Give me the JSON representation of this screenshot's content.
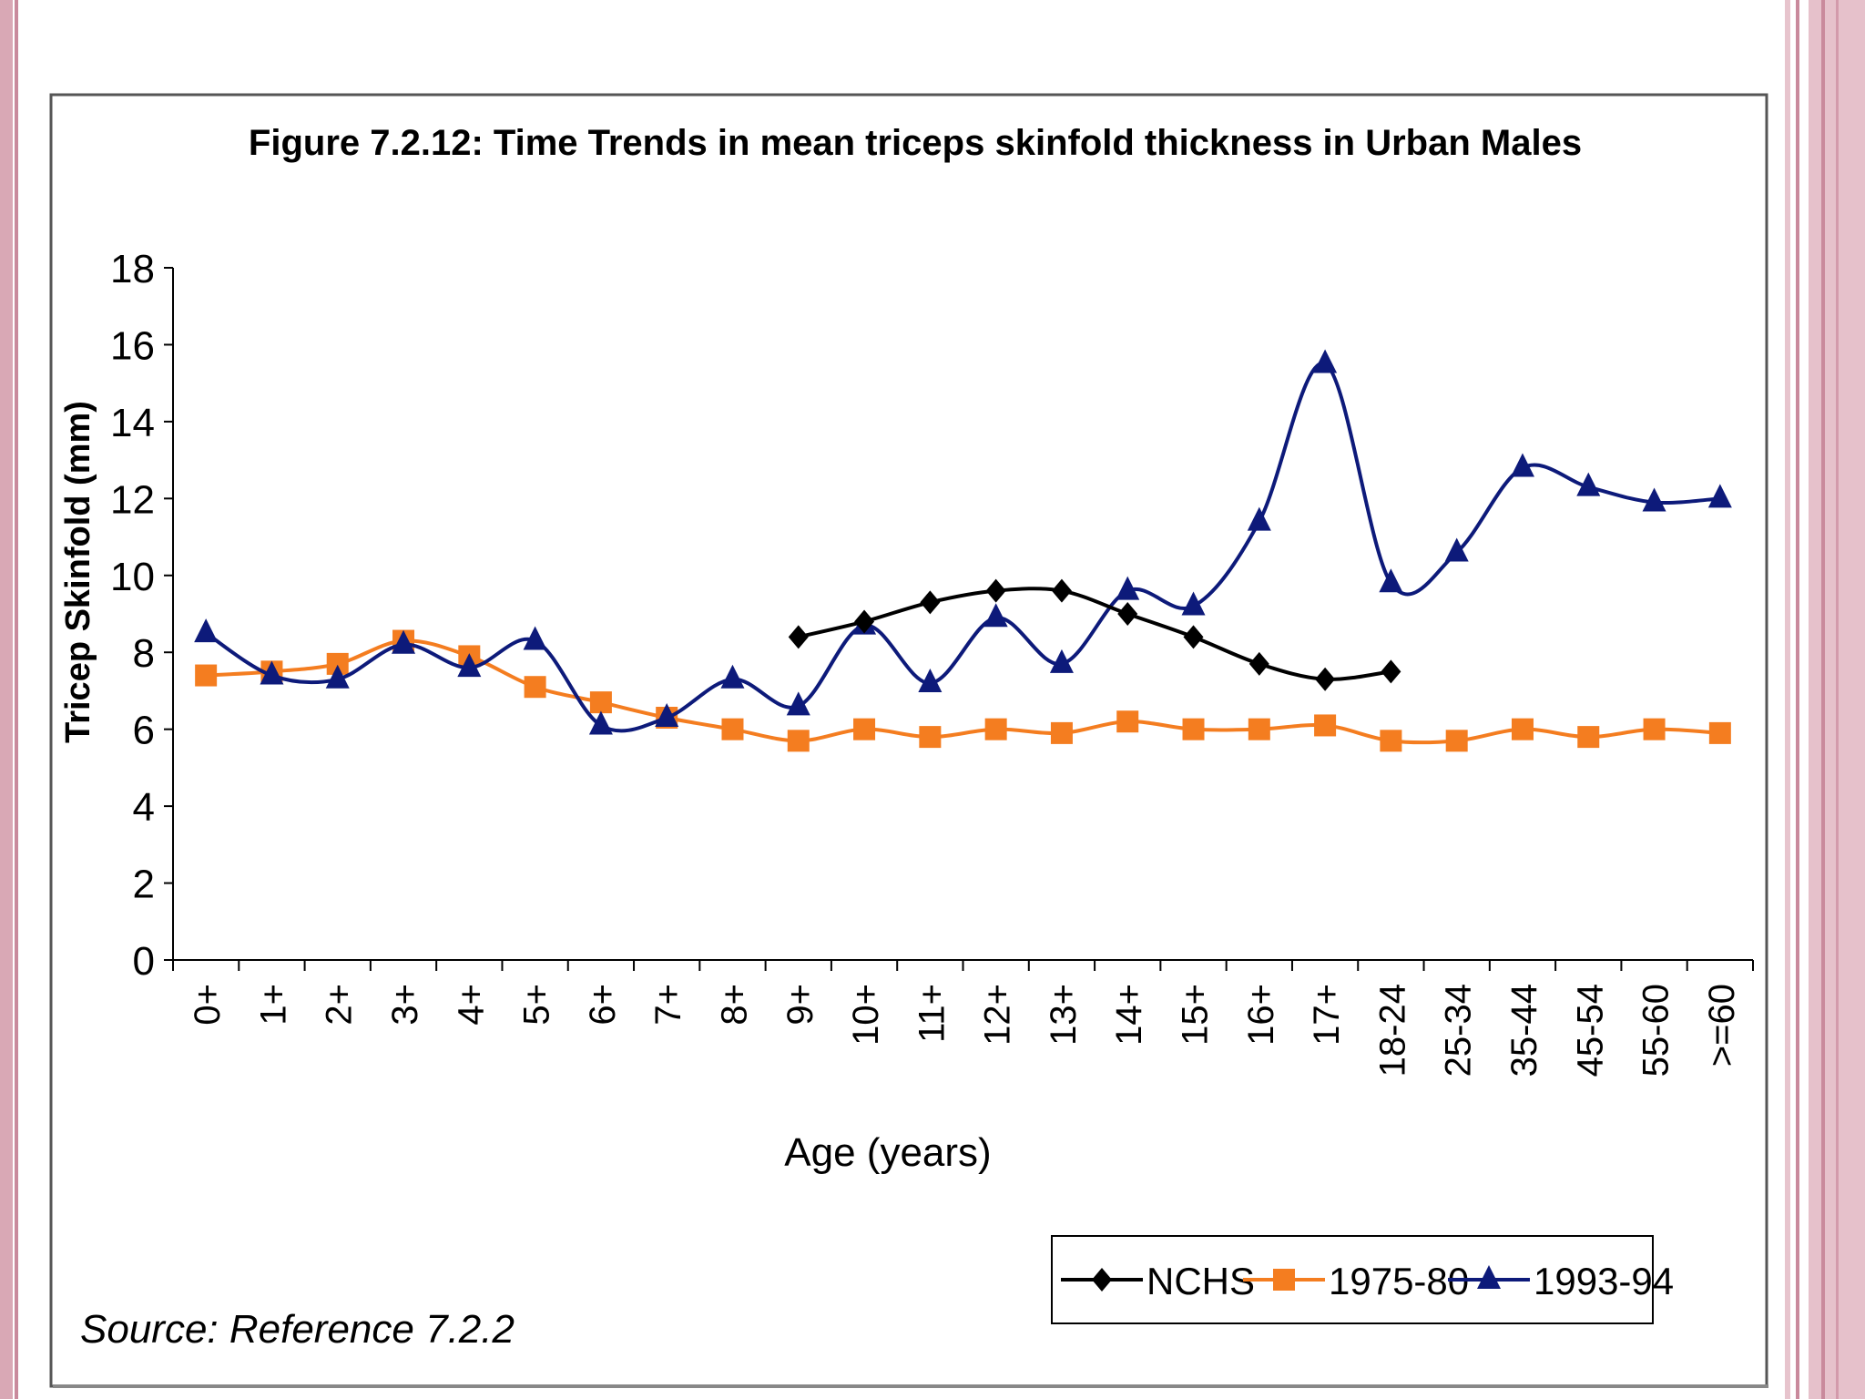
{
  "slide": {
    "background": "#ffffff",
    "border_colors": [
      "#d9a8b5",
      "#c98a9c",
      "#e7c4cd"
    ]
  },
  "figure": {
    "title": "Figure 7.2.12: Time Trends in mean triceps skinfold thickness in Urban Males",
    "source": "Source: Reference 7.2.2",
    "frame_color": "#555555"
  },
  "chart_data": {
    "type": "line",
    "title": "Figure 7.2.12: Time Trends in mean triceps skinfold thickness in Urban Males",
    "xlabel": "Age (years)",
    "ylabel": "Tricep Skinfold (mm)",
    "ylim": [
      0,
      18
    ],
    "yticks": [
      0,
      2,
      4,
      6,
      8,
      10,
      12,
      14,
      16,
      18
    ],
    "grid": false,
    "smooth": true,
    "legend_position": "bottom-right",
    "categories": [
      "0+",
      "1+",
      "2+",
      "3+",
      "4+",
      "5+",
      "6+",
      "7+",
      "8+",
      "9+",
      "10+",
      "11+",
      "12+",
      "13+",
      "14+",
      "15+",
      "16+",
      "17+",
      "18-24",
      "25-34",
      "35-44",
      "45-54",
      "55-60",
      ">=60"
    ],
    "series": [
      {
        "name": "NCHS",
        "color": "#000000",
        "marker": "diamond",
        "values": [
          null,
          null,
          null,
          null,
          null,
          null,
          null,
          null,
          null,
          8.4,
          8.8,
          9.3,
          9.6,
          9.6,
          9.0,
          8.4,
          7.7,
          7.3,
          7.5,
          null,
          null,
          null,
          null,
          null
        ]
      },
      {
        "name": "1975-80",
        "color": "#f47d20",
        "marker": "square",
        "values": [
          7.4,
          7.5,
          7.7,
          8.3,
          7.9,
          7.1,
          6.7,
          6.3,
          6.0,
          5.7,
          6.0,
          5.8,
          6.0,
          5.9,
          6.2,
          6.0,
          6.0,
          6.1,
          5.7,
          5.7,
          6.0,
          5.8,
          6.0,
          5.9
        ]
      },
      {
        "name": "1993-94",
        "color": "#0d1a7a",
        "marker": "triangle",
        "values": [
          8.5,
          7.4,
          7.3,
          8.2,
          7.6,
          8.3,
          6.1,
          6.3,
          7.3,
          6.6,
          8.7,
          7.2,
          8.9,
          7.7,
          9.6,
          9.2,
          11.4,
          15.5,
          9.8,
          10.6,
          12.8,
          12.3,
          11.9,
          12.0
        ]
      }
    ]
  }
}
